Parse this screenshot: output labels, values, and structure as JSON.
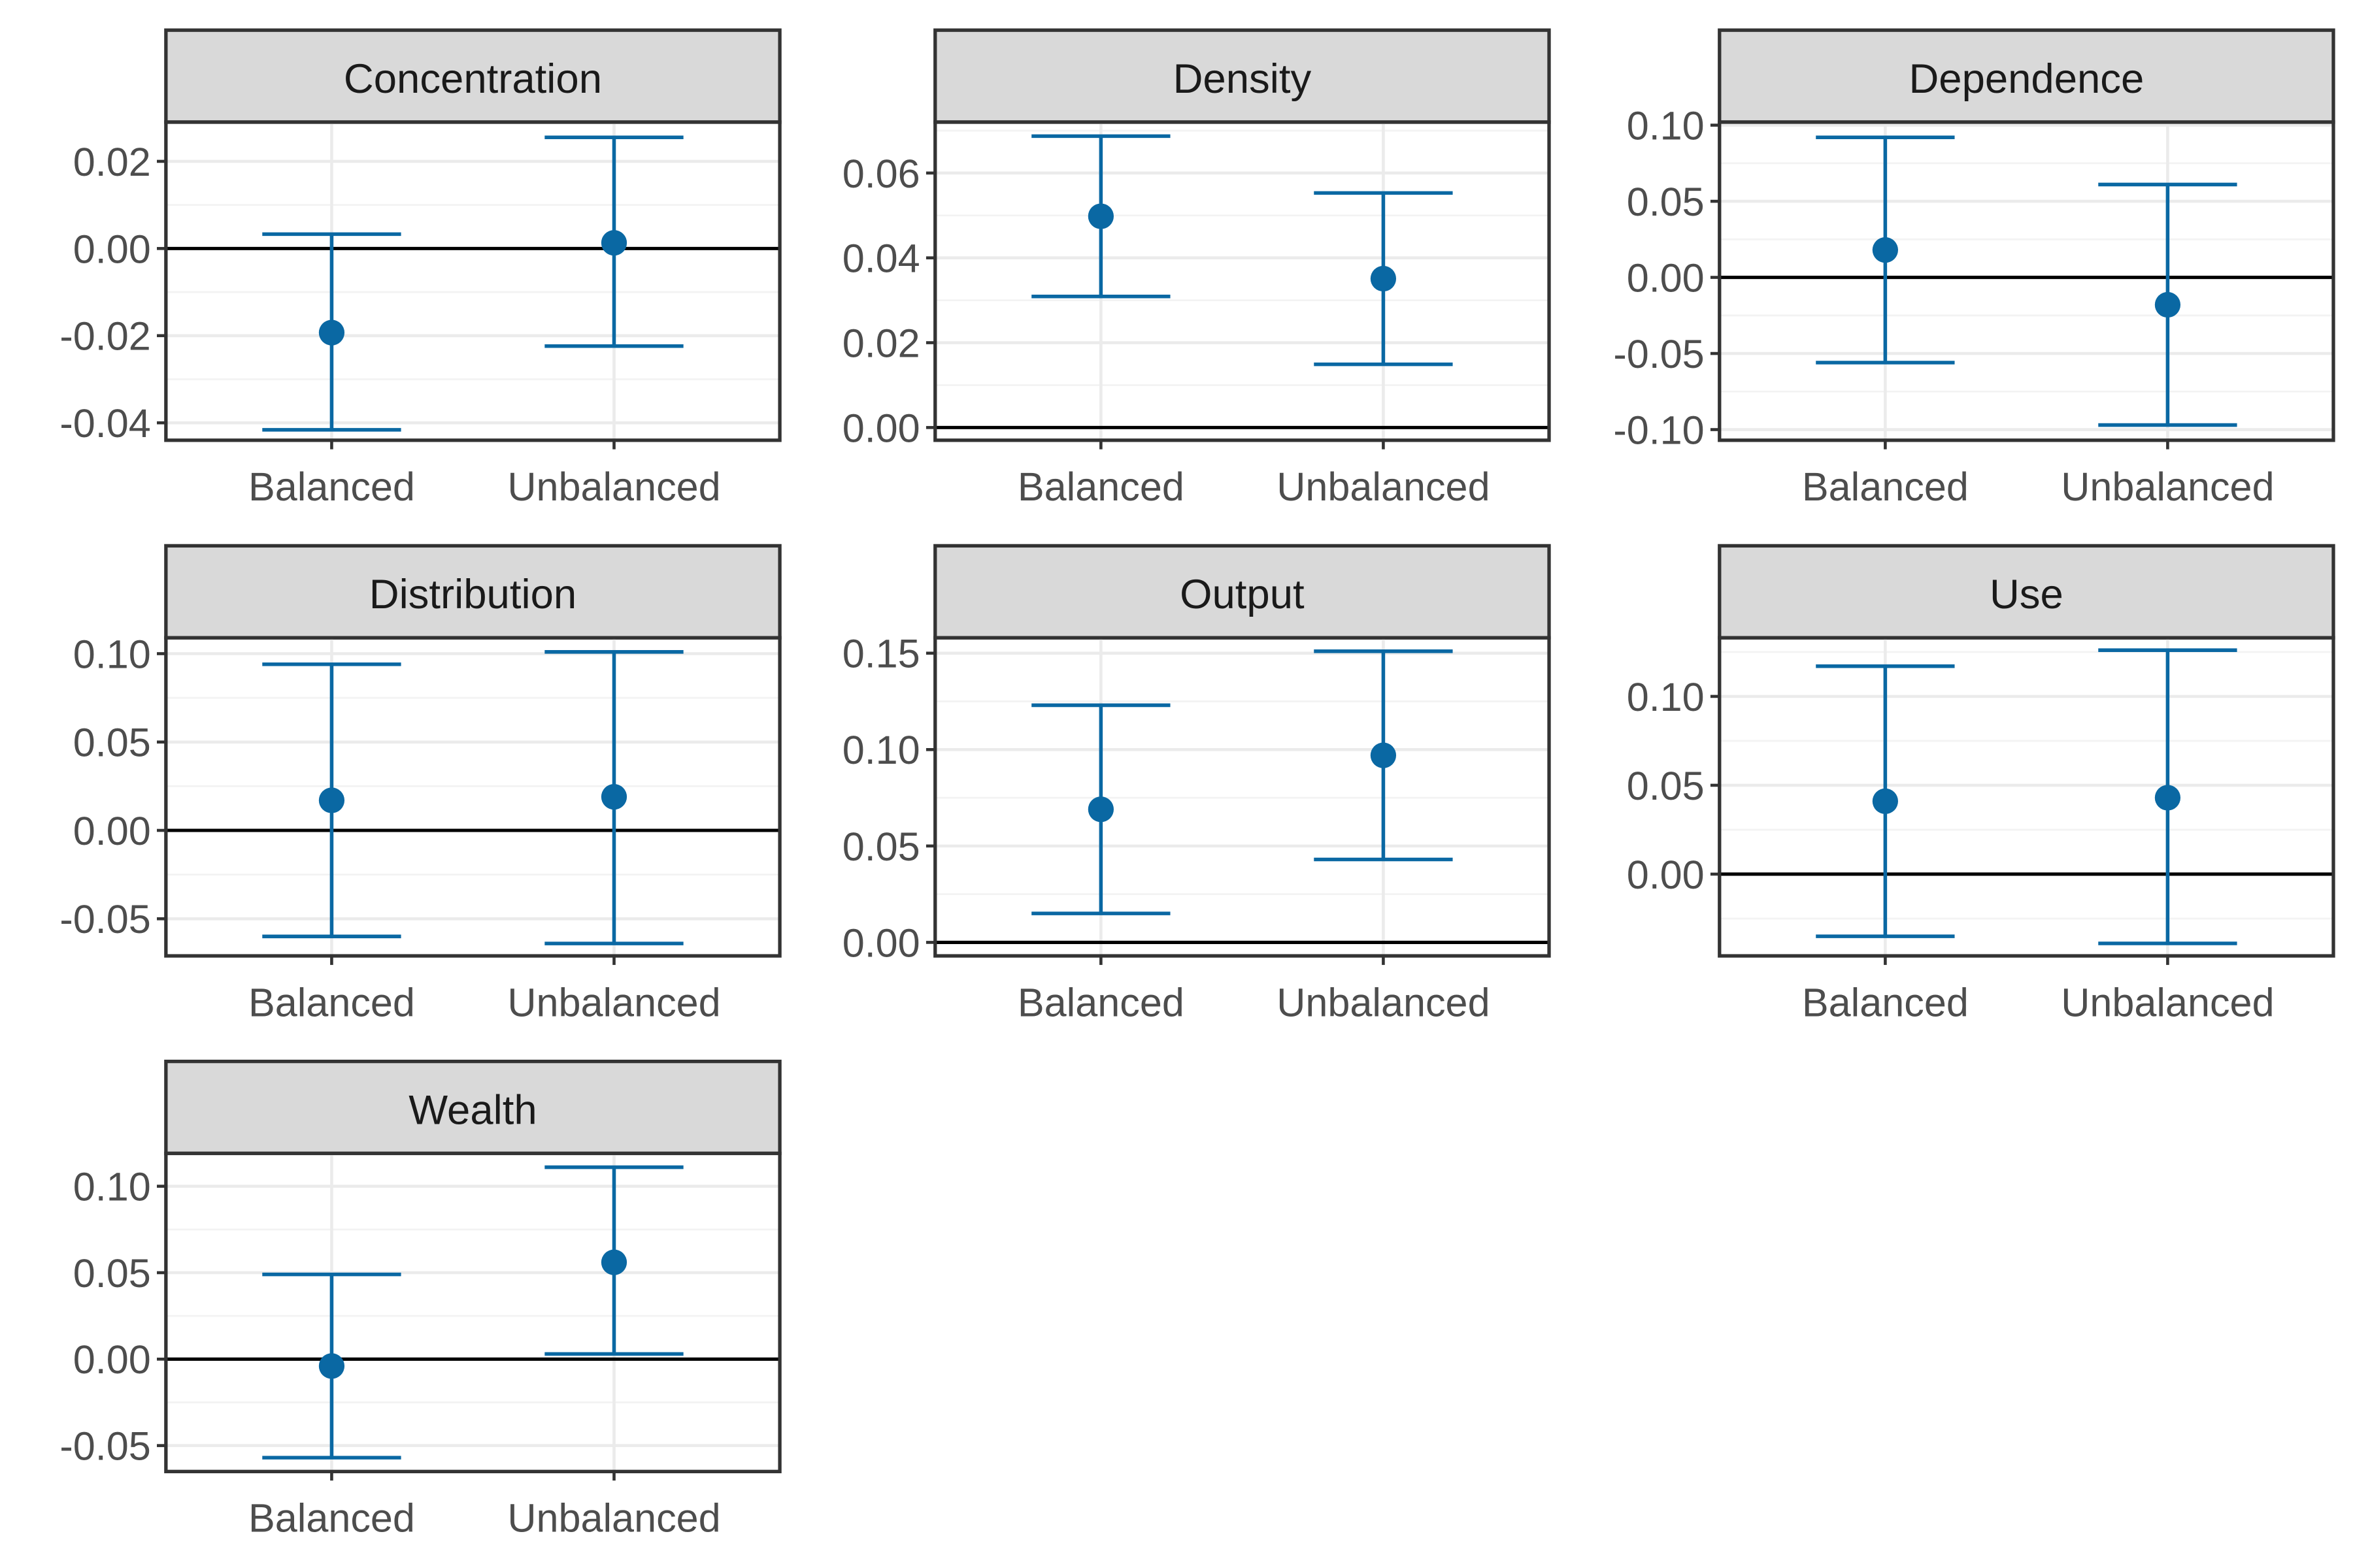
{
  "colors": {
    "point": "#0A68A3",
    "strip_fill": "#D9D9D9",
    "strip_border": "#333333",
    "panel_border": "#333333",
    "grid_major": "#EBEBEB",
    "grid_minor": "#F3F3F3",
    "zero_line": "#000000",
    "tick_text": "#4D4D4D",
    "strip_text": "#1A1A1A"
  },
  "chart_data": [
    {
      "type": "errorbar",
      "title": "Concentration",
      "categories": [
        "Balanced",
        "Unbalanced"
      ],
      "ylim": [
        -0.044,
        0.029
      ],
      "yticks": [
        -0.04,
        -0.02,
        0.0,
        0.02
      ],
      "ytick_labels": [
        "-0.04",
        "-0.02",
        "0.00",
        "0.02"
      ],
      "estimate": [
        -0.0193,
        0.0013
      ],
      "lower": [
        -0.0416,
        -0.0224
      ],
      "upper": [
        0.0033,
        0.0255
      ]
    },
    {
      "type": "errorbar",
      "title": "Density",
      "categories": [
        "Balanced",
        "Unbalanced"
      ],
      "ylim": [
        -0.003,
        0.072
      ],
      "yticks": [
        0.0,
        0.02,
        0.04,
        0.06
      ],
      "ytick_labels": [
        "0.00",
        "0.02",
        "0.04",
        "0.06"
      ],
      "estimate": [
        0.0498,
        0.0351
      ],
      "lower": [
        0.0309,
        0.0149
      ],
      "upper": [
        0.0687,
        0.0553
      ]
    },
    {
      "type": "errorbar",
      "title": "Dependence",
      "categories": [
        "Balanced",
        "Unbalanced"
      ],
      "ylim": [
        -0.107,
        0.102
      ],
      "yticks": [
        -0.1,
        -0.05,
        0.0,
        0.05,
        0.1
      ],
      "ytick_labels": [
        "-0.10",
        "-0.05",
        "0.00",
        "0.05",
        "0.10"
      ],
      "estimate": [
        0.018,
        -0.018
      ],
      "lower": [
        -0.056,
        -0.097
      ],
      "upper": [
        0.092,
        0.061
      ]
    },
    {
      "type": "errorbar",
      "title": "Distribution",
      "categories": [
        "Balanced",
        "Unbalanced"
      ],
      "ylim": [
        -0.071,
        0.109
      ],
      "yticks": [
        -0.05,
        0.0,
        0.05,
        0.1
      ],
      "ytick_labels": [
        "-0.05",
        "0.00",
        "0.05",
        "0.10"
      ],
      "estimate": [
        0.017,
        0.019
      ],
      "lower": [
        -0.06,
        -0.064
      ],
      "upper": [
        0.094,
        0.101
      ]
    },
    {
      "type": "errorbar",
      "title": "Output",
      "categories": [
        "Balanced",
        "Unbalanced"
      ],
      "ylim": [
        -0.007,
        0.158
      ],
      "yticks": [
        0.0,
        0.05,
        0.1,
        0.15
      ],
      "ytick_labels": [
        "0.00",
        "0.05",
        "0.10",
        "0.15"
      ],
      "estimate": [
        0.069,
        0.097
      ],
      "lower": [
        0.015,
        0.043
      ],
      "upper": [
        0.123,
        0.151
      ]
    },
    {
      "type": "errorbar",
      "title": "Use",
      "categories": [
        "Balanced",
        "Unbalanced"
      ],
      "ylim": [
        -0.046,
        0.133
      ],
      "yticks": [
        0.0,
        0.05,
        0.1
      ],
      "ytick_labels": [
        "0.00",
        "0.05",
        "0.10"
      ],
      "estimate": [
        0.041,
        0.043
      ],
      "lower": [
        -0.035,
        -0.039
      ],
      "upper": [
        0.117,
        0.126
      ]
    },
    {
      "type": "errorbar",
      "title": "Wealth",
      "categories": [
        "Balanced",
        "Unbalanced"
      ],
      "ylim": [
        -0.065,
        0.119
      ],
      "yticks": [
        -0.05,
        0.0,
        0.05,
        0.1
      ],
      "ytick_labels": [
        "-0.05",
        "0.00",
        "0.05",
        "0.10"
      ],
      "estimate": [
        -0.004,
        0.056
      ],
      "lower": [
        -0.057,
        0.003
      ],
      "upper": [
        0.049,
        0.111
      ]
    }
  ]
}
